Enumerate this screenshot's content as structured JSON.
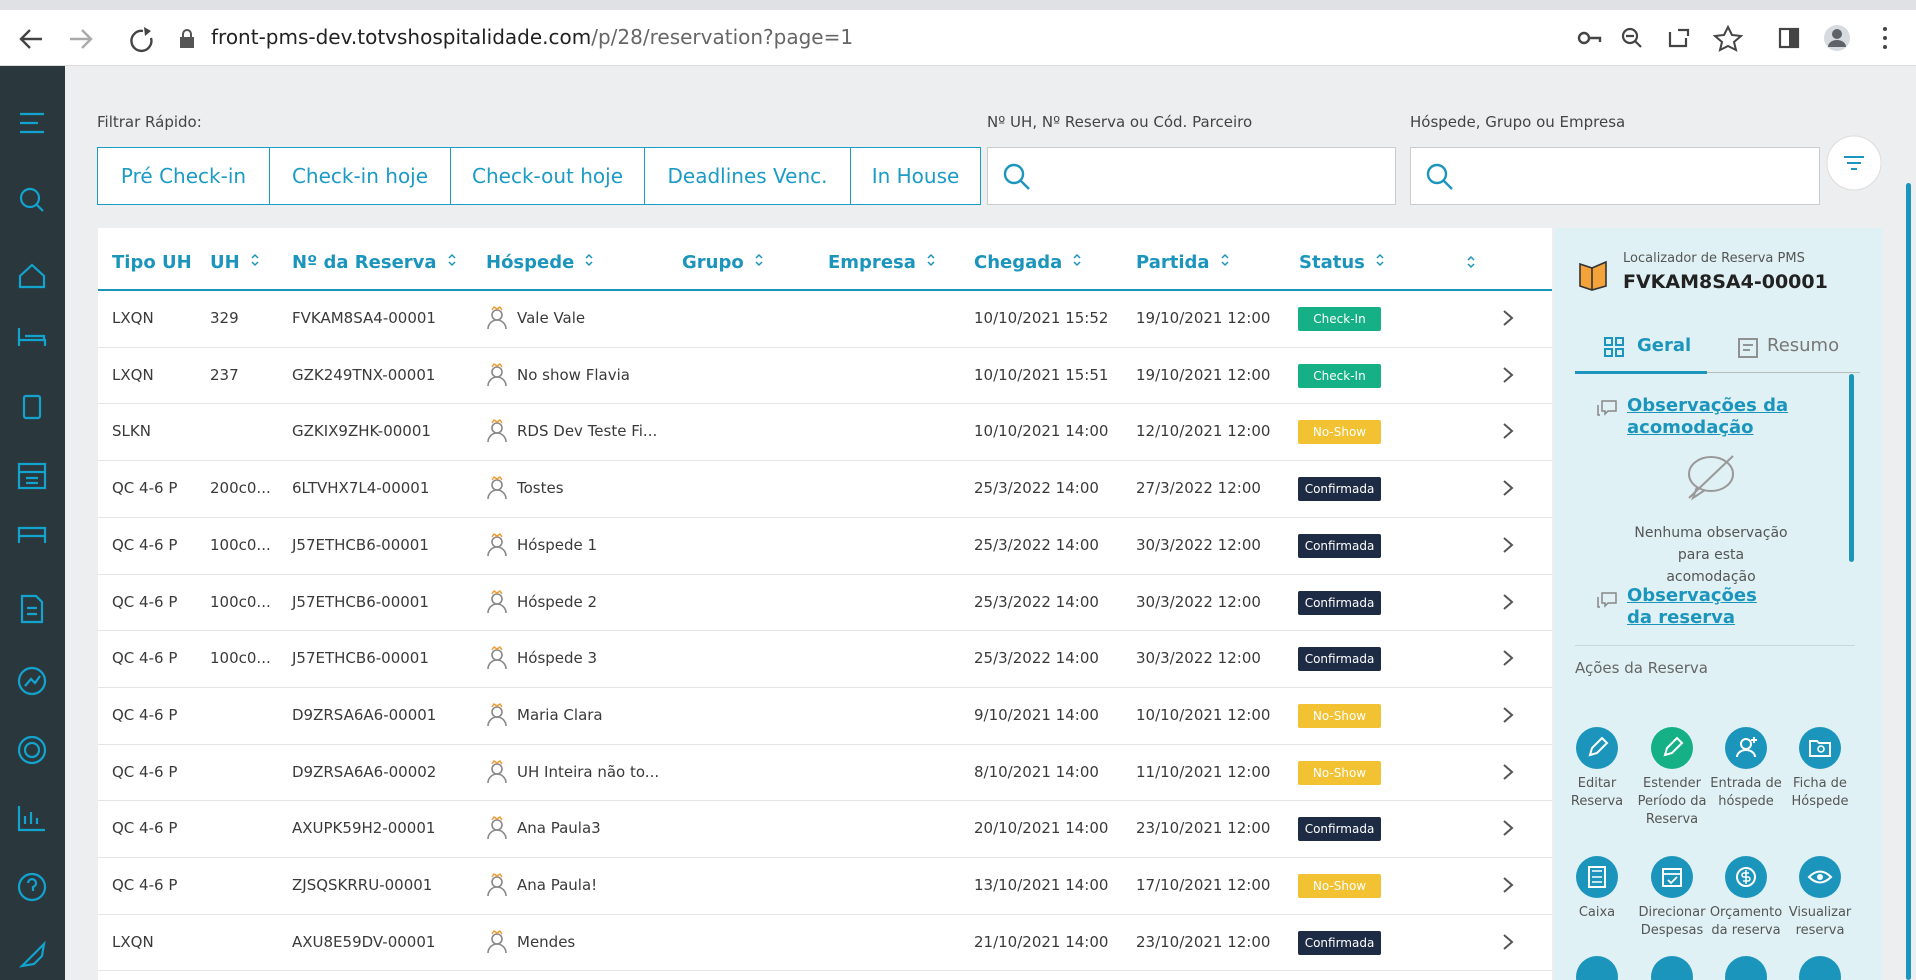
{
  "browser": {
    "url_host": "front-pms-dev.totvshospitalidade.com",
    "url_path": "/p/28/reservation?page=1"
  },
  "filters": {
    "quick_label": "Filtrar Rápido:",
    "quick_buttons": [
      "Pré Check-in",
      "Check-in hoje",
      "Check-out hoje",
      "Deadlines Venc.",
      "In House"
    ],
    "search1_label": "Nº UH, Nº Reserva ou Cód. Parceiro",
    "search2_label": "Hóspede, Grupo ou Empresa"
  },
  "table": {
    "headers": [
      "Tipo UH",
      "UH",
      "Nº da Reserva",
      "Hóspede",
      "Grupo",
      "Empresa",
      "Chegada",
      "Partida",
      "Status"
    ],
    "status_colors": {
      "Check-In": "#16b086",
      "No-Show": "#f2c232",
      "Confirmada": "#1d2b45"
    },
    "rows": [
      {
        "tipo": "LXQN",
        "uh": "329",
        "reserva": "FVKAM8SA4-00001",
        "hospede": "Vale Vale",
        "chegada": "10/10/2021 15:52",
        "partida": "19/10/2021 12:00",
        "status": "Check-In"
      },
      {
        "tipo": "LXQN",
        "uh": "237",
        "reserva": "GZK249TNX-00001",
        "hospede": "No show Flavia",
        "chegada": "10/10/2021 15:51",
        "partida": "19/10/2021 12:00",
        "status": "Check-In"
      },
      {
        "tipo": "SLKN",
        "reserva": "GZKIX9ZHK-00001",
        "hospede": "RDS Dev Teste Fi...",
        "chegada": "10/10/2021 14:00",
        "partida": "12/10/2021 12:00",
        "status": "No-Show"
      },
      {
        "tipo": "QC 4-6 P",
        "uh": "200c0...",
        "reserva": "6LTVHX7L4-00001",
        "hospede": "Tostes",
        "chegada": "25/3/2022 14:00",
        "partida": "27/3/2022 12:00",
        "status": "Confirmada"
      },
      {
        "tipo": "QC 4-6 P",
        "uh": "100c0...",
        "reserva": "J57ETHCB6-00001",
        "hospede": "Hóspede 1",
        "chegada": "25/3/2022 14:00",
        "partida": "30/3/2022 12:00",
        "status": "Confirmada"
      },
      {
        "tipo": "QC 4-6 P",
        "uh": "100c0...",
        "reserva": "J57ETHCB6-00001",
        "hospede": "Hóspede 2",
        "chegada": "25/3/2022 14:00",
        "partida": "30/3/2022 12:00",
        "status": "Confirmada"
      },
      {
        "tipo": "QC 4-6 P",
        "uh": "100c0...",
        "reserva": "J57ETHCB6-00001",
        "hospede": "Hóspede 3",
        "chegada": "25/3/2022 14:00",
        "partida": "30/3/2022 12:00",
        "status": "Confirmada"
      },
      {
        "tipo": "QC 4-6 P",
        "reserva": "D9ZRSA6A6-00001",
        "hospede": "Maria Clara",
        "chegada": "9/10/2021 14:00",
        "partida": "10/10/2021 12:00",
        "status": "No-Show"
      },
      {
        "tipo": "QC 4-6 P",
        "reserva": "D9ZRSA6A6-00002",
        "hospede": "UH Inteira não to...",
        "chegada": "8/10/2021 14:00",
        "partida": "11/10/2021 12:00",
        "status": "No-Show"
      },
      {
        "tipo": "QC 4-6 P",
        "reserva": "AXUPK59H2-00001",
        "hospede": "Ana Paula3",
        "chegada": "20/10/2021 14:00",
        "partida": "23/10/2021 12:00",
        "status": "Confirmada"
      },
      {
        "tipo": "QC 4-6 P",
        "reserva": "ZJSQSKRRU-00001",
        "hospede": "Ana Paula!",
        "chegada": "13/10/2021 14:00",
        "partida": "17/10/2021 12:00",
        "status": "No-Show"
      },
      {
        "tipo": "LXQN",
        "reserva": "AXU8E59DV-00001",
        "hospede": "Mendes",
        "chegada": "21/10/2021 14:00",
        "partida": "23/10/2021 12:00",
        "status": "Confirmada"
      }
    ]
  },
  "panel": {
    "label": "Localizador de Reserva PMS",
    "code": "FVKAM8SA4-00001",
    "tabs": [
      "Geral",
      "Resumo"
    ],
    "obs_acomodacao": "Observações da acomodação",
    "empty_note": "Nenhuma observação para esta acomodação",
    "obs_reserva": "Observações da reserva",
    "actions_title": "Ações da Reserva",
    "actions": [
      "Editar Reserva",
      "Estender Período da Reserva",
      "Entrada de hóspede",
      "Ficha de Hóspede",
      "Caixa",
      "Direcionar Despesas",
      "Orçamento da reserva",
      "Visualizar reserva"
    ]
  }
}
